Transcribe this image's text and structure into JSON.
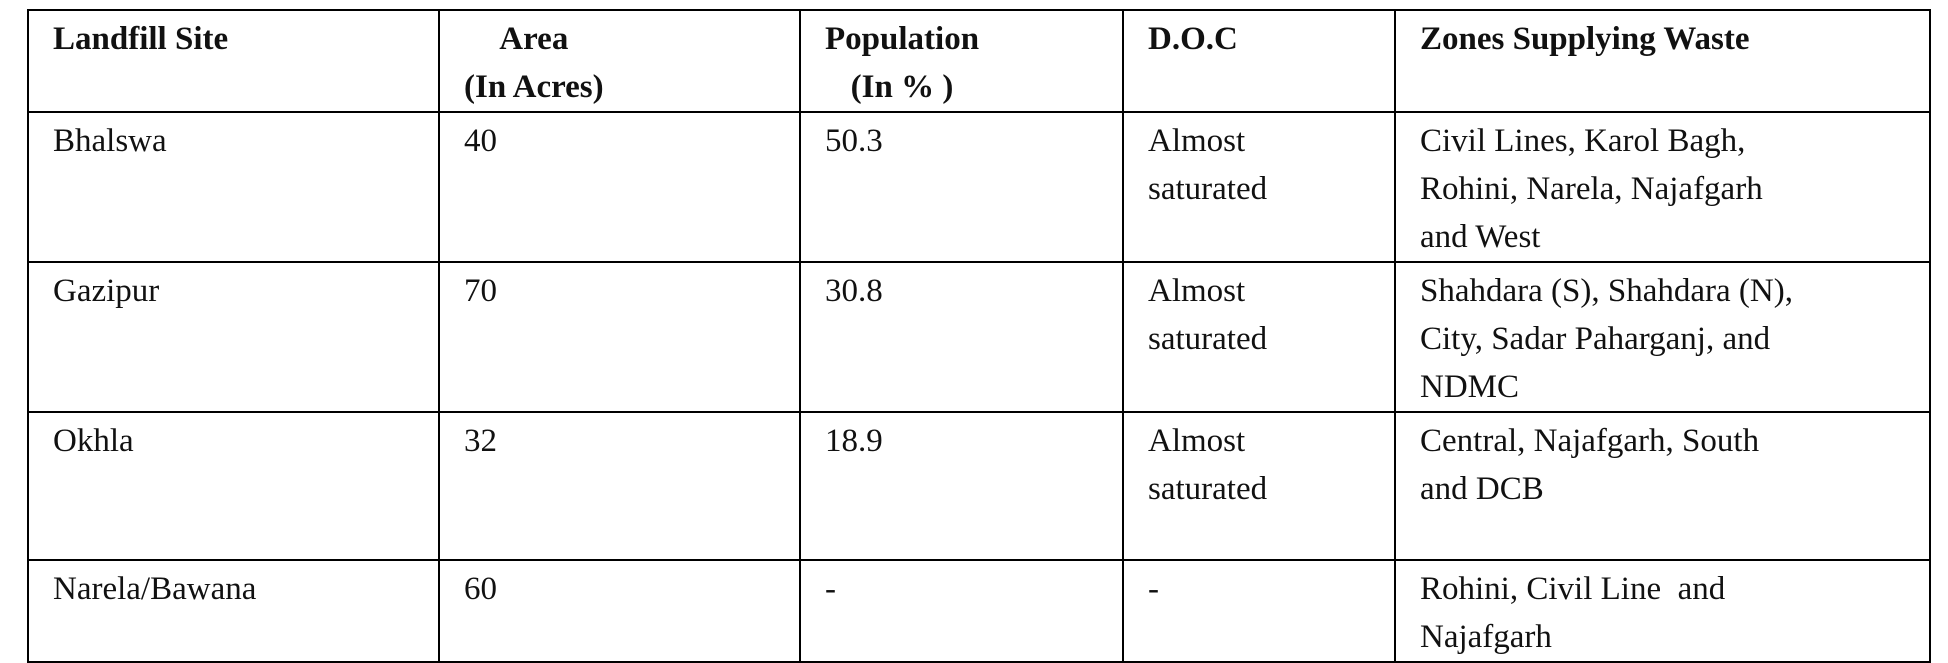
{
  "table": {
    "header": [
      [
        "Landfill Site"
      ],
      [
        "Area",
        "(In Acres)"
      ],
      [
        "Population",
        "(In % )"
      ],
      [
        "D.O.C"
      ],
      [
        "Zones Supplying Waste"
      ]
    ],
    "rows": [
      [
        [
          "Bhalswa"
        ],
        [
          "40"
        ],
        [
          "50.3"
        ],
        [
          "Almost",
          "saturated"
        ],
        [
          "Civil Lines, Karol Bagh,",
          "Rohini, Narela, Najafgarh",
          "and West"
        ]
      ],
      [
        [
          "Gazipur"
        ],
        [
          "70"
        ],
        [
          "30.8"
        ],
        [
          "Almost",
          "saturated"
        ],
        [
          "Shahdara (S), Shahdara (N),",
          "City, Sadar Paharganj, and",
          "NDMC"
        ]
      ],
      [
        [
          "Okhla"
        ],
        [
          "32"
        ],
        [
          "18.9"
        ],
        [
          "Almost",
          "saturated"
        ],
        [
          "Central, Najafgarh, South",
          "and DCB"
        ]
      ],
      [
        [
          "Narela/Bawana"
        ],
        [
          "60"
        ],
        [
          "-"
        ],
        [
          "-"
        ],
        [
          "Rohini, Civil Line  and",
          "Najafgarh"
        ]
      ]
    ]
  }
}
